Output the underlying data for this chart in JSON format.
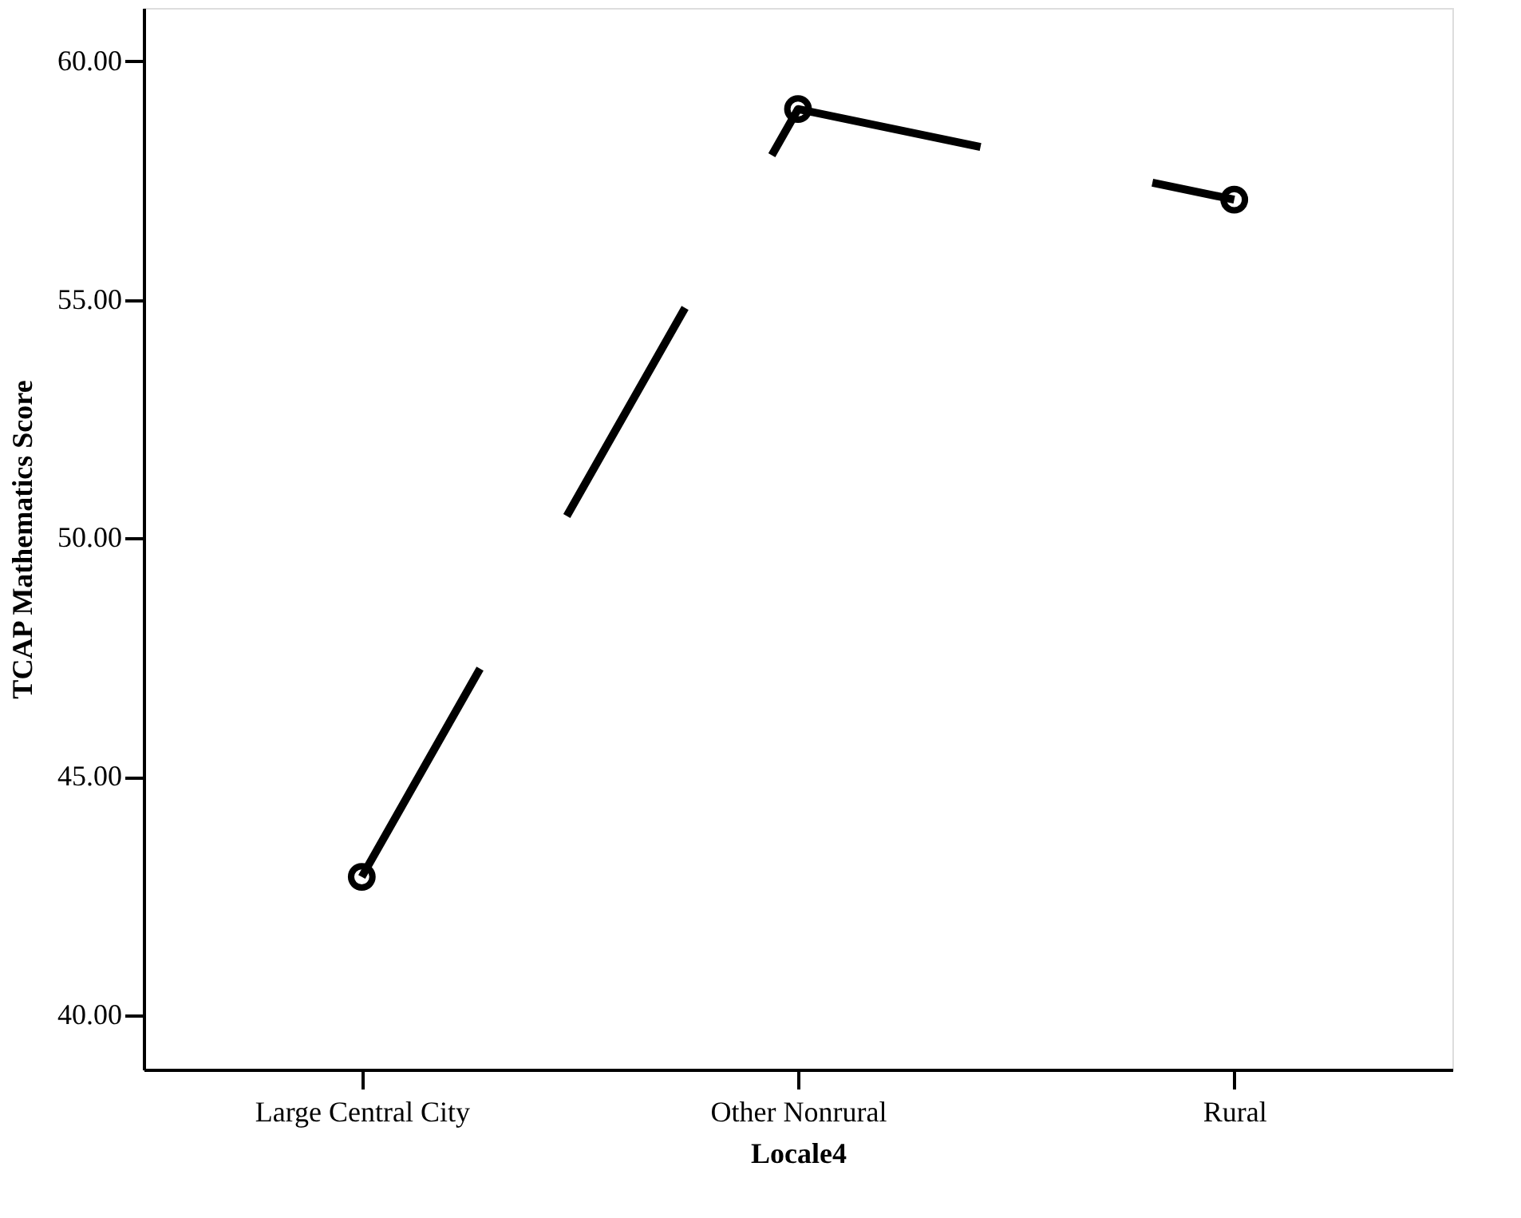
{
  "chart_data": {
    "type": "line",
    "xlabel": "Locale4",
    "ylabel": "TCAP Mathematics Score",
    "categories": [
      "Large Central City",
      "Other Nonrural",
      "Rural"
    ],
    "series": [
      {
        "color": "#000000",
        "values": [
          42.9,
          59.0,
          57.1
        ]
      }
    ],
    "ylim": [
      38.86,
      61.12
    ],
    "yticks": [
      {
        "value": 40,
        "label": "40.00"
      },
      {
        "value": 45,
        "label": "45.00"
      },
      {
        "value": 50,
        "label": "50.00"
      },
      {
        "value": 55,
        "label": "55.00"
      },
      {
        "value": 60,
        "label": "60.00"
      }
    ],
    "grid": false,
    "legend": false,
    "marker": "circle",
    "line_style": "dashed"
  }
}
